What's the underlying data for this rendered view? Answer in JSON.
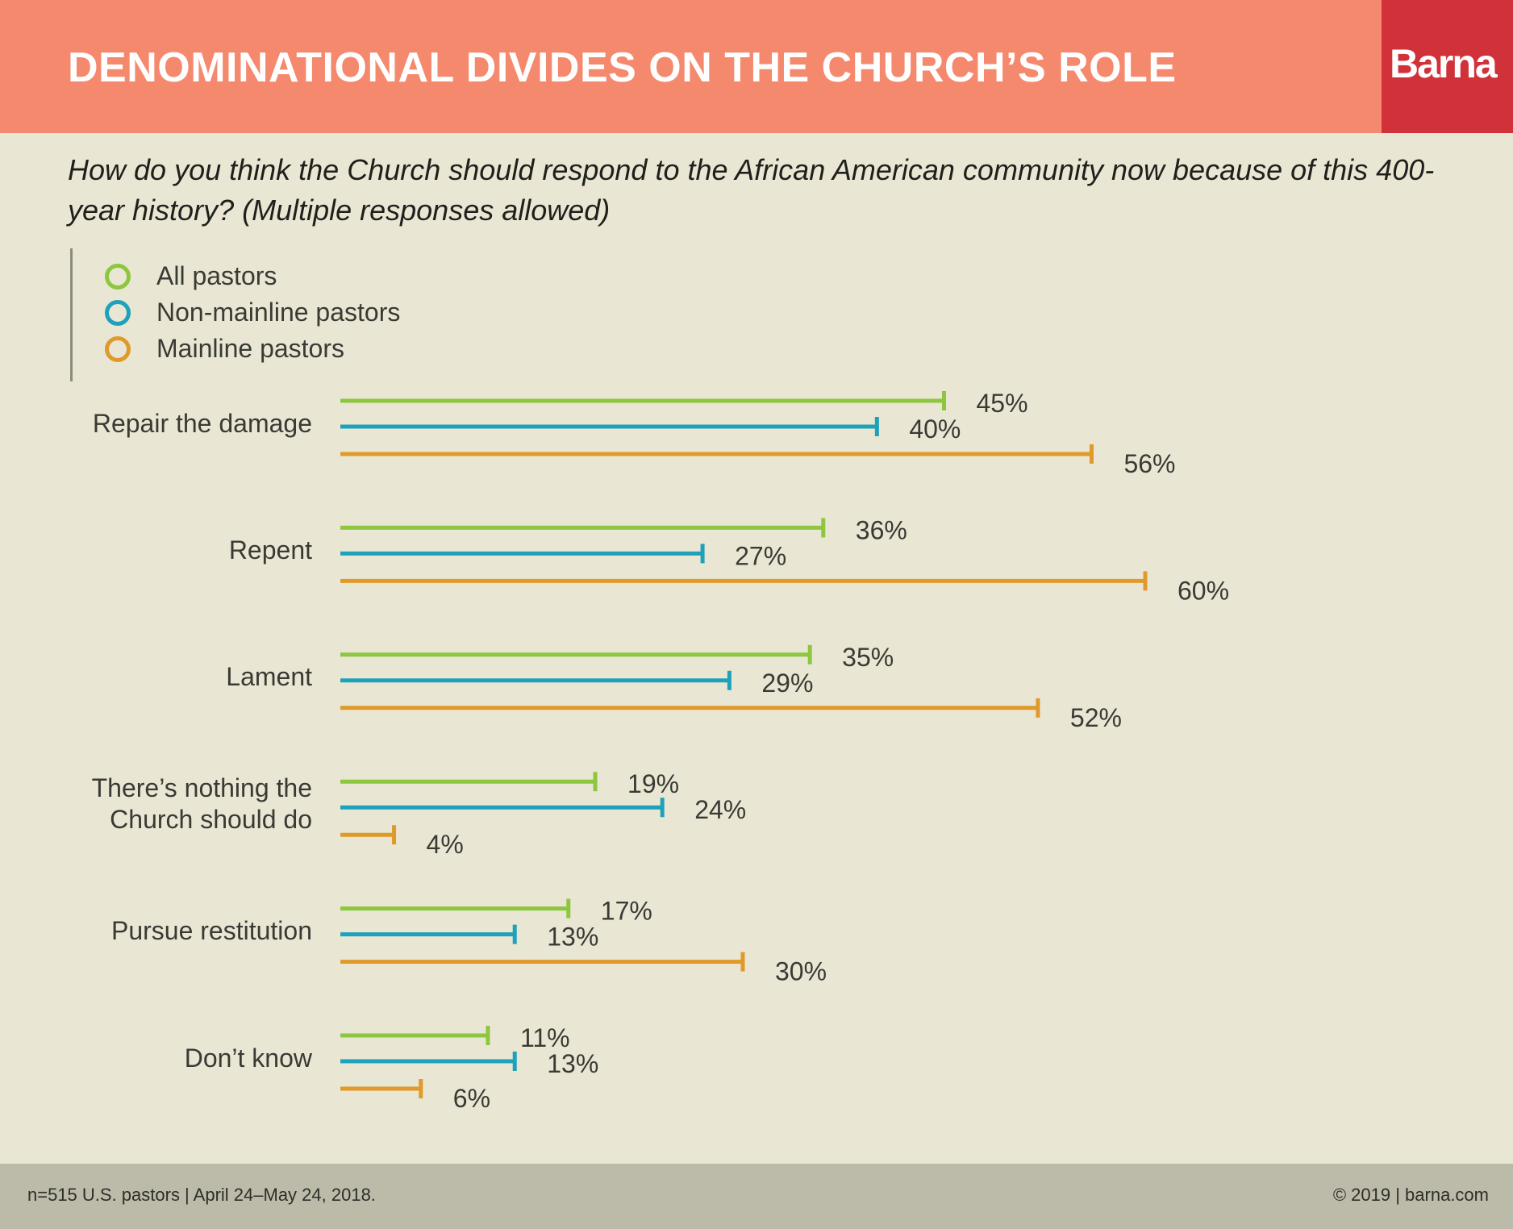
{
  "header": {
    "title": "DENOMINATIONAL DIVIDES ON THE CHURCH’S ROLE",
    "logo_text": "Barna",
    "bg_color": "#f5896d",
    "logo_color": "#d1323a"
  },
  "question": "How do you think the Church should respond to the African American community now because of this 400-year history? (Multiple responses allowed)",
  "footer": {
    "note": "n=515 U.S. pastors | April 24–May 24, 2018.",
    "copyright": "© 2019 | barna.com"
  },
  "chart_data": {
    "type": "bar",
    "orientation": "horizontal",
    "grid": false,
    "legend_position": "top-left",
    "unit": "%",
    "xlim": [
      0,
      60
    ],
    "categories": [
      [
        "Repair the damage"
      ],
      [
        "Repent"
      ],
      [
        "Lament"
      ],
      [
        "There’s nothing the",
        "Church should do"
      ],
      [
        "Pursue restitution"
      ],
      [
        "Don’t know"
      ]
    ],
    "series": [
      {
        "name": "All pastors",
        "color": "#8dc63f",
        "values": [
          45,
          36,
          35,
          19,
          17,
          11
        ],
        "labels": [
          "45%",
          "36%",
          "35%",
          "19%",
          "17%",
          "11%"
        ]
      },
      {
        "name": "Non-mainline pastors",
        "color": "#1ea1bb",
        "values": [
          40,
          27,
          29,
          24,
          13,
          13
        ],
        "labels": [
          "40%",
          "27%",
          "29%",
          "24%",
          "13%",
          "13%"
        ]
      },
      {
        "name": "Mainline pastors",
        "color": "#e09a2b",
        "values": [
          56,
          60,
          52,
          4,
          30,
          6
        ],
        "labels": [
          "56%",
          "60%",
          "52%",
          "4%",
          "30%",
          "6%"
        ]
      }
    ]
  }
}
